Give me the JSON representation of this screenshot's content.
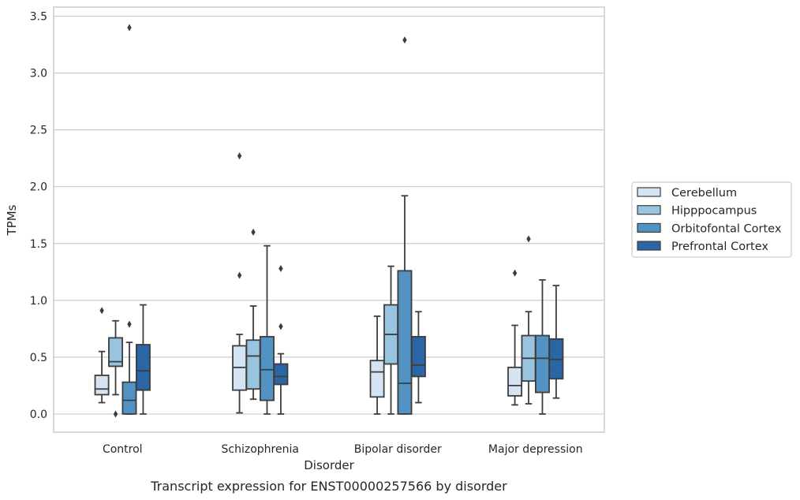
{
  "chart_data": {
    "type": "box",
    "xlabel": "Disorder",
    "ylabel": "TPMs",
    "caption": "Transcript expression for ENST00000257566 by disorder",
    "ylim": [
      -0.16,
      3.58
    ],
    "yticks": [
      "0.0",
      "0.5",
      "1.0",
      "1.5",
      "2.0",
      "2.5",
      "3.0",
      "3.5"
    ],
    "grid": true,
    "legend_position": "right",
    "categories": [
      "Control",
      "Schizophrenia",
      "Bipolar disorder",
      "Major depression"
    ],
    "series": [
      {
        "name": "Cerebellum",
        "color": "#d5e4f2",
        "boxes": [
          {
            "whislo": 0.1,
            "q1": 0.17,
            "med": 0.22,
            "q3": 0.34,
            "whishi": 0.55,
            "fliers": [
              0.91
            ]
          },
          {
            "whislo": 0.01,
            "q1": 0.21,
            "med": 0.41,
            "q3": 0.6,
            "whishi": 0.7,
            "fliers": [
              1.22,
              2.27
            ]
          },
          {
            "whislo": 0.0,
            "q1": 0.15,
            "med": 0.37,
            "q3": 0.47,
            "whishi": 0.86,
            "fliers": []
          },
          {
            "whislo": 0.08,
            "q1": 0.16,
            "med": 0.25,
            "q3": 0.41,
            "whishi": 0.78,
            "fliers": [
              1.24
            ]
          }
        ]
      },
      {
        "name": "Hipppocampus",
        "color": "#99c4e0",
        "boxes": [
          {
            "whislo": 0.17,
            "q1": 0.42,
            "med": 0.46,
            "q3": 0.67,
            "whishi": 0.82,
            "fliers": [
              0.0
            ]
          },
          {
            "whislo": 0.13,
            "q1": 0.22,
            "med": 0.51,
            "q3": 0.65,
            "whishi": 0.95,
            "fliers": [
              1.6
            ]
          },
          {
            "whislo": 0.0,
            "q1": 0.44,
            "med": 0.7,
            "q3": 0.96,
            "whishi": 1.3,
            "fliers": []
          },
          {
            "whislo": 0.09,
            "q1": 0.29,
            "med": 0.49,
            "q3": 0.69,
            "whishi": 0.9,
            "fliers": [
              1.54
            ]
          }
        ]
      },
      {
        "name": "Orbitofontal Cortex",
        "color": "#5393c3",
        "boxes": [
          {
            "whislo": 0.0,
            "q1": 0.0,
            "med": 0.12,
            "q3": 0.28,
            "whishi": 0.63,
            "fliers": [
              0.79,
              3.4
            ]
          },
          {
            "whislo": 0.0,
            "q1": 0.12,
            "med": 0.39,
            "q3": 0.68,
            "whishi": 1.48,
            "fliers": []
          },
          {
            "whislo": 0.0,
            "q1": 0.0,
            "med": 0.27,
            "q3": 1.26,
            "whishi": 1.92,
            "fliers": [
              3.29
            ]
          },
          {
            "whislo": 0.0,
            "q1": 0.19,
            "med": 0.49,
            "q3": 0.69,
            "whishi": 1.18,
            "fliers": []
          }
        ]
      },
      {
        "name": "Prefrontal Cortex",
        "color": "#2a66a6",
        "boxes": [
          {
            "whislo": 0.0,
            "q1": 0.21,
            "med": 0.38,
            "q3": 0.61,
            "whishi": 0.96,
            "fliers": []
          },
          {
            "whislo": 0.0,
            "q1": 0.26,
            "med": 0.33,
            "q3": 0.44,
            "whishi": 0.53,
            "fliers": [
              0.77,
              1.28
            ]
          },
          {
            "whislo": 0.1,
            "q1": 0.33,
            "med": 0.43,
            "q3": 0.68,
            "whishi": 0.9,
            "fliers": []
          },
          {
            "whislo": 0.14,
            "q1": 0.31,
            "med": 0.48,
            "q3": 0.66,
            "whishi": 1.13,
            "fliers": []
          }
        ]
      }
    ]
  }
}
